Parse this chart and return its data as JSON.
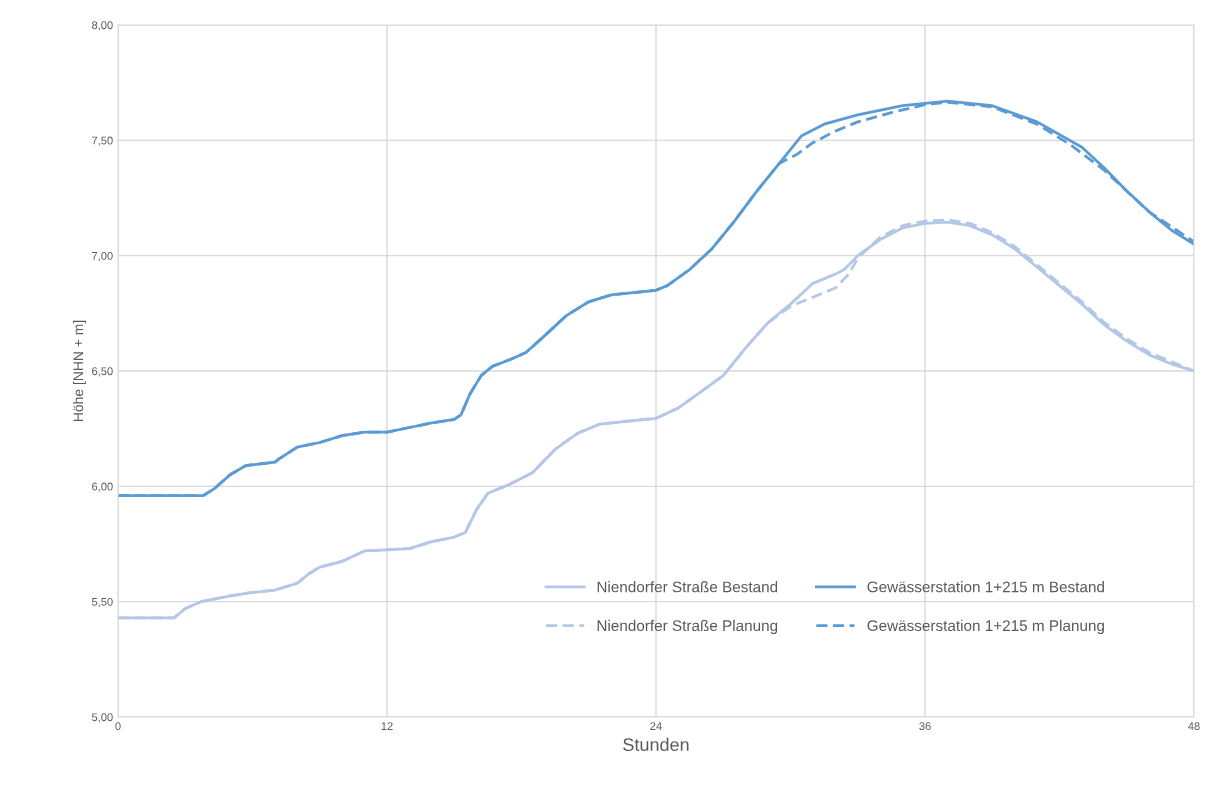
{
  "chart_data": {
    "type": "line",
    "xlabel": "Stunden",
    "ylabel": "Höhe [NHN + m]",
    "xlim": [
      0,
      48
    ],
    "xticks": [
      0,
      12,
      24,
      36,
      48
    ],
    "ylim": [
      5,
      8
    ],
    "yticks": [
      {
        "value": 5,
        "label": "5,00"
      },
      {
        "value": 5.5,
        "label": "5,50"
      },
      {
        "value": 6,
        "label": "6,00"
      },
      {
        "value": 6.5,
        "label": "6,50"
      },
      {
        "value": 7,
        "label": "7,00"
      },
      {
        "value": 7.5,
        "label": "7,50"
      },
      {
        "value": 8,
        "label": "8,00"
      }
    ],
    "grid": true,
    "legend": "bottom right",
    "marker": "none",
    "series": [
      {
        "name": "Niendorfer Straße Bestand",
        "color": "#b4c7e7",
        "line_style": "solid",
        "x": [
          0,
          2.5,
          3,
          3.7,
          5,
          6,
          7,
          8,
          8.5,
          9,
          10,
          11,
          12,
          13,
          14,
          15,
          15.5,
          16,
          16.5,
          17.5,
          18.5,
          19.5,
          20.5,
          21.5,
          23,
          24,
          25,
          26,
          27,
          28,
          29,
          30,
          31,
          32,
          32.4,
          33,
          34,
          35,
          36,
          37,
          38,
          39,
          40,
          41,
          42,
          43,
          44,
          45,
          46,
          47,
          48
        ],
        "values": [
          5.43,
          5.43,
          5.47,
          5.5,
          5.525,
          5.54,
          5.55,
          5.58,
          5.62,
          5.65,
          5.675,
          5.72,
          5.725,
          5.73,
          5.76,
          5.78,
          5.8,
          5.9,
          5.97,
          6.01,
          6.06,
          6.16,
          6.23,
          6.27,
          6.285,
          6.295,
          6.34,
          6.41,
          6.48,
          6.6,
          6.71,
          6.79,
          6.88,
          6.92,
          6.94,
          7.0,
          7.07,
          7.12,
          7.14,
          7.145,
          7.13,
          7.09,
          7.03,
          6.95,
          6.87,
          6.79,
          6.7,
          6.63,
          6.57,
          6.53,
          6.5
        ]
      },
      {
        "name": "Niendorfer Straße Planung",
        "color": "#b4c7e7",
        "line_style": "dashed",
        "x": [
          0,
          2.5,
          3,
          3.7,
          5,
          6,
          7,
          8,
          8.5,
          9,
          10,
          11,
          12,
          13,
          14,
          15,
          15.5,
          16,
          16.5,
          17.5,
          18.5,
          19.5,
          20.5,
          21.5,
          23,
          24,
          25,
          26,
          27,
          28,
          29,
          30,
          31,
          32,
          32.6,
          33,
          34,
          35,
          36,
          37,
          38,
          39,
          40,
          41,
          42,
          43,
          44,
          45,
          46,
          48
        ],
        "values": [
          5.43,
          5.43,
          5.47,
          5.5,
          5.525,
          5.54,
          5.55,
          5.58,
          5.62,
          5.65,
          5.675,
          5.72,
          5.725,
          5.73,
          5.76,
          5.78,
          5.8,
          5.9,
          5.97,
          6.01,
          6.06,
          6.16,
          6.23,
          6.27,
          6.285,
          6.295,
          6.34,
          6.41,
          6.48,
          6.6,
          6.71,
          6.78,
          6.82,
          6.86,
          6.92,
          6.99,
          7.08,
          7.13,
          7.15,
          7.155,
          7.14,
          7.1,
          7.04,
          6.96,
          6.88,
          6.8,
          6.71,
          6.64,
          6.58,
          6.5
        ]
      },
      {
        "name": "Gewässerstation 1+215 m Bestand",
        "color": "#5b9bd5",
        "line_style": "solid",
        "x": [
          0,
          3.8,
          4.3,
          5,
          5.7,
          7,
          7.2,
          8,
          9,
          10,
          11,
          12,
          13,
          14,
          15,
          15.3,
          15.7,
          16.2,
          16.7,
          17.5,
          18.2,
          19,
          20,
          21,
          22,
          23,
          24,
          24.5,
          25.5,
          26.5,
          27.5,
          28.5,
          29.5,
          30.5,
          31.5,
          33,
          35,
          37,
          39,
          41,
          43,
          44,
          45,
          46,
          47,
          48
        ],
        "values": [
          5.96,
          5.96,
          5.99,
          6.05,
          6.09,
          6.105,
          6.12,
          6.17,
          6.19,
          6.22,
          6.235,
          6.235,
          6.255,
          6.275,
          6.29,
          6.31,
          6.4,
          6.48,
          6.52,
          6.55,
          6.58,
          6.65,
          6.74,
          6.8,
          6.83,
          6.84,
          6.85,
          6.87,
          6.94,
          7.03,
          7.15,
          7.28,
          7.4,
          7.52,
          7.57,
          7.61,
          7.65,
          7.67,
          7.65,
          7.58,
          7.47,
          7.38,
          7.28,
          7.19,
          7.11,
          7.05
        ]
      },
      {
        "name": "Gewässerstation 1+215 m Planung",
        "color": "#5b9bd5",
        "line_style": "dashed",
        "x": [
          0,
          3.8,
          4.3,
          5,
          5.7,
          7,
          7.2,
          8,
          9,
          10,
          11,
          12,
          13,
          14,
          15,
          15.3,
          15.7,
          16.2,
          16.7,
          17.5,
          18.2,
          19,
          20,
          21,
          22,
          23,
          24,
          24.5,
          25.5,
          26.5,
          27.5,
          28.5,
          29.5,
          30.3,
          31,
          32,
          33,
          34.5,
          36,
          37,
          39,
          41,
          42.5,
          44,
          46,
          48
        ],
        "values": [
          5.96,
          5.96,
          5.99,
          6.05,
          6.09,
          6.105,
          6.12,
          6.17,
          6.19,
          6.22,
          6.235,
          6.235,
          6.255,
          6.275,
          6.29,
          6.31,
          6.4,
          6.48,
          6.52,
          6.55,
          6.58,
          6.65,
          6.74,
          6.8,
          6.83,
          6.84,
          6.85,
          6.87,
          6.94,
          7.03,
          7.15,
          7.28,
          7.4,
          7.44,
          7.49,
          7.54,
          7.58,
          7.62,
          7.655,
          7.665,
          7.645,
          7.57,
          7.48,
          7.37,
          7.19,
          7.06
        ]
      }
    ]
  }
}
